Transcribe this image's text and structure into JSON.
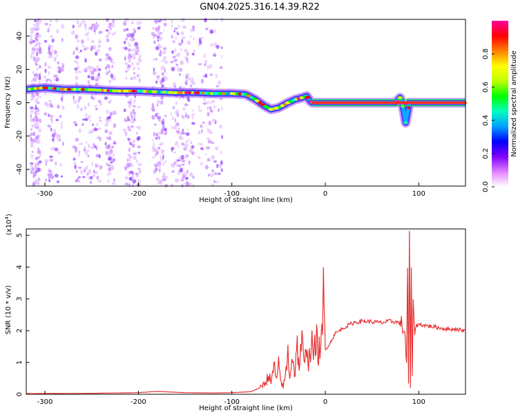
{
  "title": "GN04.2025.316.14.39.R22",
  "chart_data": [
    {
      "type": "heatmap",
      "xlabel": "Height of straight line (km)",
      "ylabel": "Frequency (Hz)",
      "xlim": [
        -320,
        150
      ],
      "ylim": [
        -50,
        50
      ],
      "xticks": [
        -300,
        -200,
        -100,
        0,
        100
      ],
      "yticks": [
        -40,
        -20,
        0,
        20,
        40
      ],
      "colorbar": {
        "label": "Normalized spectral amplitude",
        "range": [
          0,
          1
        ],
        "ticks": [
          "0.0",
          "0.2",
          "0.4",
          "0.6",
          "0.8"
        ],
        "colors": [
          "#ffffff",
          "#e080ff",
          "#8000ff",
          "#0000ff",
          "#00a0ff",
          "#00ffc0",
          "#00ff00",
          "#c0ff00",
          "#ffff00",
          "#ff8000",
          "#ff0000",
          "#ff00a0"
        ]
      },
      "ridge": {
        "x": [
          -320,
          -300,
          -280,
          -260,
          -240,
          -220,
          -200,
          -180,
          -160,
          -140,
          -120,
          -100,
          -85,
          -75,
          -65,
          -58,
          -50,
          -40,
          -32,
          -25,
          -20,
          -15,
          0,
          20,
          40,
          60,
          75,
          80,
          83,
          86,
          90,
          100,
          120,
          150
        ],
        "y": [
          8,
          9,
          8,
          8,
          7.5,
          7,
          7,
          6.5,
          6,
          6,
          5.5,
          5.5,
          5,
          2,
          -2,
          -4,
          -3,
          0,
          2,
          3,
          4,
          0,
          0,
          0,
          0,
          0,
          0,
          3,
          -2,
          -12,
          0,
          0,
          0,
          0
        ]
      }
    },
    {
      "type": "line",
      "xlabel": "Height of straight line (km)",
      "ylabel": "SNR (10 * v/v)",
      "scale_label": "(x10",
      "scale_exp": "4",
      "scale_close": ")",
      "xlim": [
        -320,
        150
      ],
      "ylim": [
        0,
        5.2
      ],
      "xticks": [
        -300,
        -200,
        -100,
        0,
        100
      ],
      "yticks": [
        0,
        1,
        2,
        3,
        4,
        5
      ],
      "color": "#e83030",
      "series": [
        {
          "x": [
            -320,
            -250,
            -200,
            -180,
            -150,
            -120,
            -100,
            -80,
            -70,
            -65,
            -60,
            -58,
            -55,
            -52,
            -50,
            -48,
            -45,
            -42,
            -40,
            -38,
            -35,
            -33,
            -30,
            -28,
            -25,
            -22,
            -20,
            -18,
            -15,
            -12,
            -10,
            -8,
            -5,
            -3,
            -2,
            0,
            5,
            10,
            20,
            30,
            40,
            50,
            60,
            70,
            80,
            85,
            87,
            88,
            89,
            90,
            91,
            92,
            93,
            94,
            95,
            100,
            110,
            120,
            130,
            140,
            150
          ],
          "y": [
            0.02,
            0.03,
            0.05,
            0.09,
            0.05,
            0.04,
            0.05,
            0.08,
            0.2,
            0.35,
            0.6,
            0.3,
            0.95,
            0.4,
            0.9,
            0.5,
            0.2,
            0.75,
            1.3,
            0.6,
            1.25,
            0.6,
            1.5,
            0.9,
            1.6,
            0.8,
            1.75,
            1.0,
            1.6,
            1.2,
            1.9,
            1.3,
            1.5,
            1.8,
            3.25,
            1.4,
            1.6,
            1.9,
            2.1,
            2.25,
            2.3,
            2.28,
            2.25,
            2.3,
            2.25,
            2.0,
            0.9,
            3.8,
            0.3,
            5.2,
            0.2,
            4.3,
            0.5,
            2.7,
            2.1,
            2.2,
            2.15,
            2.1,
            2.05,
            2.05,
            2.0
          ]
        }
      ]
    }
  ]
}
